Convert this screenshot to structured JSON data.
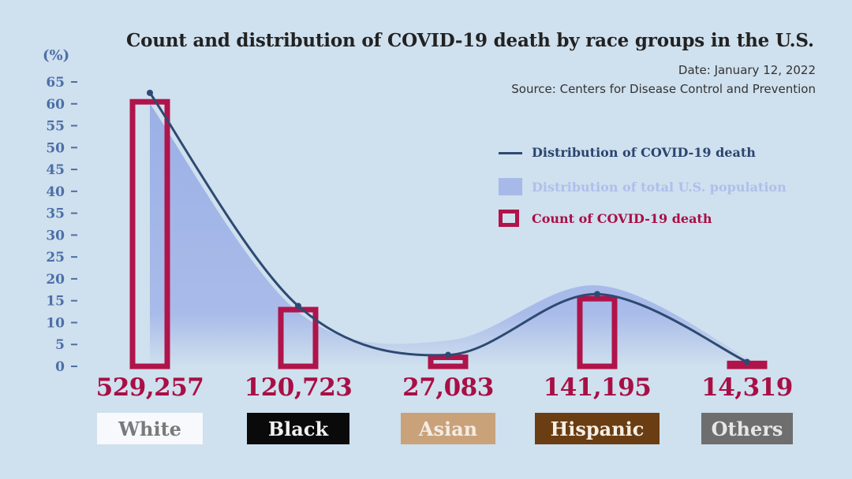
{
  "chart_data": {
    "type": "bar",
    "title": "Count and distribution of COVID-19 death by race groups in the U.S.",
    "date_text": "Date: January 12, 2022",
    "source_text": "Source: Centers for Disease Control and Prevention",
    "ylabel": "(%)",
    "ylim": [
      0,
      65
    ],
    "yticks": [
      0,
      5,
      10,
      15,
      20,
      25,
      30,
      35,
      40,
      45,
      50,
      55,
      60,
      65
    ],
    "categories": [
      "White",
      "Black",
      "Asian",
      "Hispanic",
      "Others"
    ],
    "category_colors": [
      "#f7f9fc",
      "#0a0a0a",
      "#c9a27a",
      "#6b3d12",
      "#6e6e6e"
    ],
    "category_text_colors": [
      "#7a7a7a",
      "#f2f2f2",
      "#f4ece2",
      "#f6efe6",
      "#e6e6e6"
    ],
    "count_labels": [
      "529,257",
      "120,723",
      "27,083",
      "141,195",
      "14,319"
    ],
    "series": [
      {
        "name": "Distribution of COVID-19 death",
        "kind": "line",
        "color": "#2e4a72",
        "values": [
          62.5,
          13.8,
          2.6,
          16.5,
          1.0
        ]
      },
      {
        "name": "Distribution of total U.S. population",
        "kind": "area",
        "color": "#a6b9e8",
        "values": [
          60,
          12.4,
          5.9,
          18.5,
          2.0
        ]
      },
      {
        "name": "Count of COVID-19 death",
        "kind": "bar",
        "color": "#b0144a",
        "values": [
          61,
          13.5,
          2.6,
          16,
          1.2
        ]
      }
    ],
    "legend_placement": "right",
    "grid": false
  }
}
